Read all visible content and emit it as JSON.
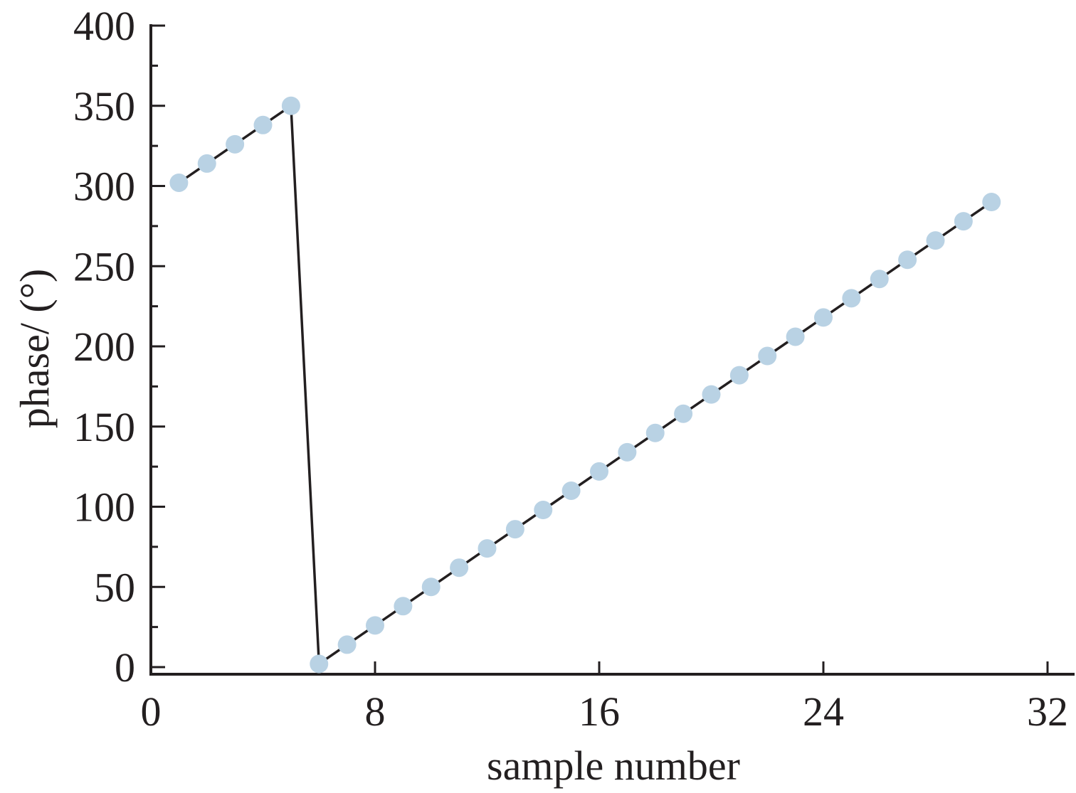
{
  "chart_data": {
    "type": "line",
    "title": "",
    "xlabel": "sample number",
    "ylabel": "phase/ (°)",
    "xlim": [
      0,
      32
    ],
    "ylim": [
      0,
      400
    ],
    "xticks": [
      "0",
      "8",
      "16",
      "24",
      "32"
    ],
    "yticks": [
      "0",
      "50",
      "100",
      "150",
      "200",
      "250",
      "300",
      "350",
      "400"
    ],
    "grid": false,
    "legend": "none",
    "colors": {
      "line": "#231f20",
      "marker": "#b9d2e4"
    },
    "series": [
      {
        "x": [
          1,
          2,
          3,
          4,
          5,
          6,
          7,
          8,
          9,
          10,
          11,
          12,
          13,
          14,
          15,
          16,
          17,
          18,
          19,
          20,
          21,
          22,
          23,
          24,
          25,
          26,
          27,
          28,
          29,
          30
        ],
        "values": [
          302,
          314,
          326,
          338,
          350,
          2,
          14,
          26,
          38,
          50,
          62,
          74,
          86,
          98,
          110,
          122,
          134,
          146,
          158,
          170,
          182,
          194,
          206,
          218,
          230,
          242,
          254,
          266,
          278,
          290
        ]
      }
    ]
  }
}
